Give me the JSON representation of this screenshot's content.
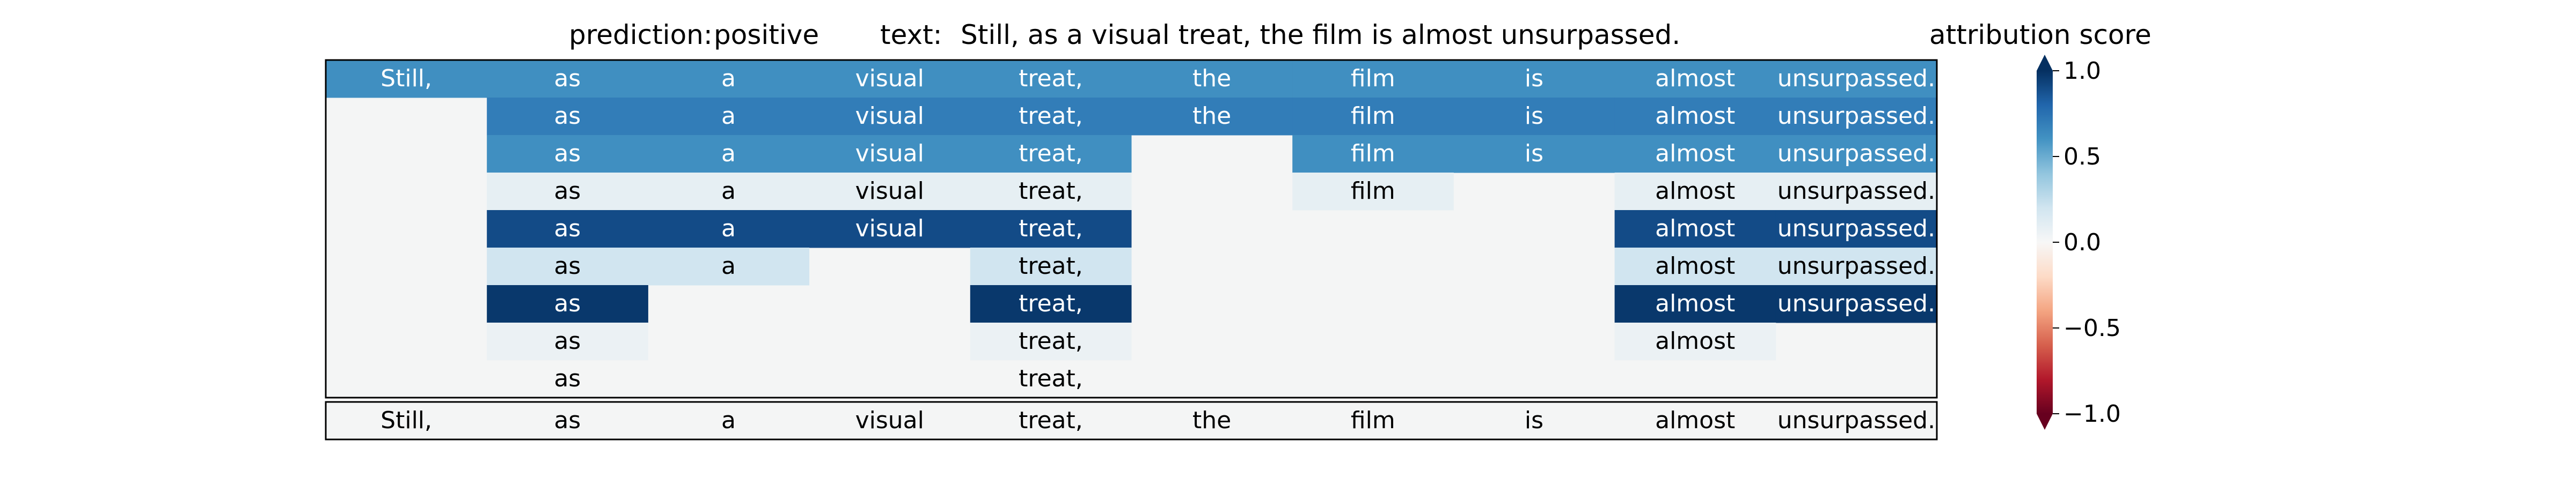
{
  "chart_data": {
    "type": "heatmap",
    "title": "prediction:  positive     text:  Still, as a visual treat, the film is almost unsurpassed.",
    "prediction_label": "prediction:",
    "prediction": "positive",
    "text_label": "text:",
    "text": "Still, as a visual treat, the film is almost unsurpassed.",
    "tokens": [
      "Still,",
      "as",
      "a",
      "visual",
      "treat,",
      "the",
      "film",
      "is",
      "almost",
      "unsurpassed."
    ],
    "rows": [
      [
        0.62,
        0.62,
        0.62,
        0.62,
        0.62,
        0.62,
        0.62,
        0.62,
        0.62,
        0.62
      ],
      [
        null,
        0.7,
        0.7,
        0.7,
        0.7,
        0.7,
        0.7,
        0.7,
        0.7,
        0.7
      ],
      [
        null,
        0.62,
        0.62,
        0.62,
        0.62,
        0.0,
        0.62,
        0.62,
        0.62,
        0.62
      ],
      [
        null,
        0.08,
        0.08,
        0.08,
        0.08,
        0.0,
        0.08,
        0.0,
        0.08,
        0.08
      ],
      [
        null,
        0.9,
        0.9,
        0.9,
        0.9,
        0.0,
        0.0,
        0.0,
        0.9,
        0.9
      ],
      [
        null,
        0.2,
        0.2,
        0.0,
        0.2,
        0.0,
        0.0,
        0.0,
        0.2,
        0.2
      ],
      [
        null,
        0.97,
        0.0,
        0.0,
        0.97,
        0.0,
        0.0,
        0.0,
        0.97,
        0.97
      ],
      [
        null,
        0.05,
        0.0,
        0.0,
        0.05,
        0.0,
        0.0,
        0.0,
        0.05,
        null
      ],
      [
        null,
        0.0,
        0.0,
        0.0,
        0.0,
        0.0,
        0.0,
        0.0,
        0.0,
        null
      ]
    ],
    "row_labels": [
      [
        true,
        true,
        true,
        true,
        true,
        true,
        true,
        true,
        true,
        true
      ],
      [
        false,
        true,
        true,
        true,
        true,
        true,
        true,
        true,
        true,
        true
      ],
      [
        false,
        true,
        true,
        true,
        true,
        false,
        true,
        true,
        true,
        true
      ],
      [
        false,
        true,
        true,
        true,
        true,
        false,
        true,
        false,
        true,
        true
      ],
      [
        false,
        true,
        true,
        true,
        true,
        false,
        false,
        false,
        true,
        true
      ],
      [
        false,
        true,
        true,
        false,
        true,
        false,
        false,
        false,
        true,
        true
      ],
      [
        false,
        true,
        false,
        false,
        true,
        false,
        false,
        false,
        true,
        true
      ],
      [
        false,
        true,
        false,
        false,
        true,
        false,
        false,
        false,
        true,
        false
      ],
      [
        false,
        true,
        false,
        false,
        true,
        false,
        false,
        false,
        false,
        false
      ]
    ],
    "bottom_row": [
      "Still,",
      "as",
      "a",
      "visual",
      "treat,",
      "the",
      "film",
      "is",
      "almost",
      "unsurpassed."
    ],
    "colorbar": {
      "label": "attribution score",
      "colormap": "RdBu",
      "vmin": -1.0,
      "vmax": 1.0,
      "ticks": [
        1.0,
        0.5,
        0.0,
        -0.5,
        -1.0
      ],
      "tick_labels": [
        "1.0",
        "0.5",
        "0.0",
        "−0.5",
        "−1.0"
      ],
      "extend": "both"
    }
  }
}
